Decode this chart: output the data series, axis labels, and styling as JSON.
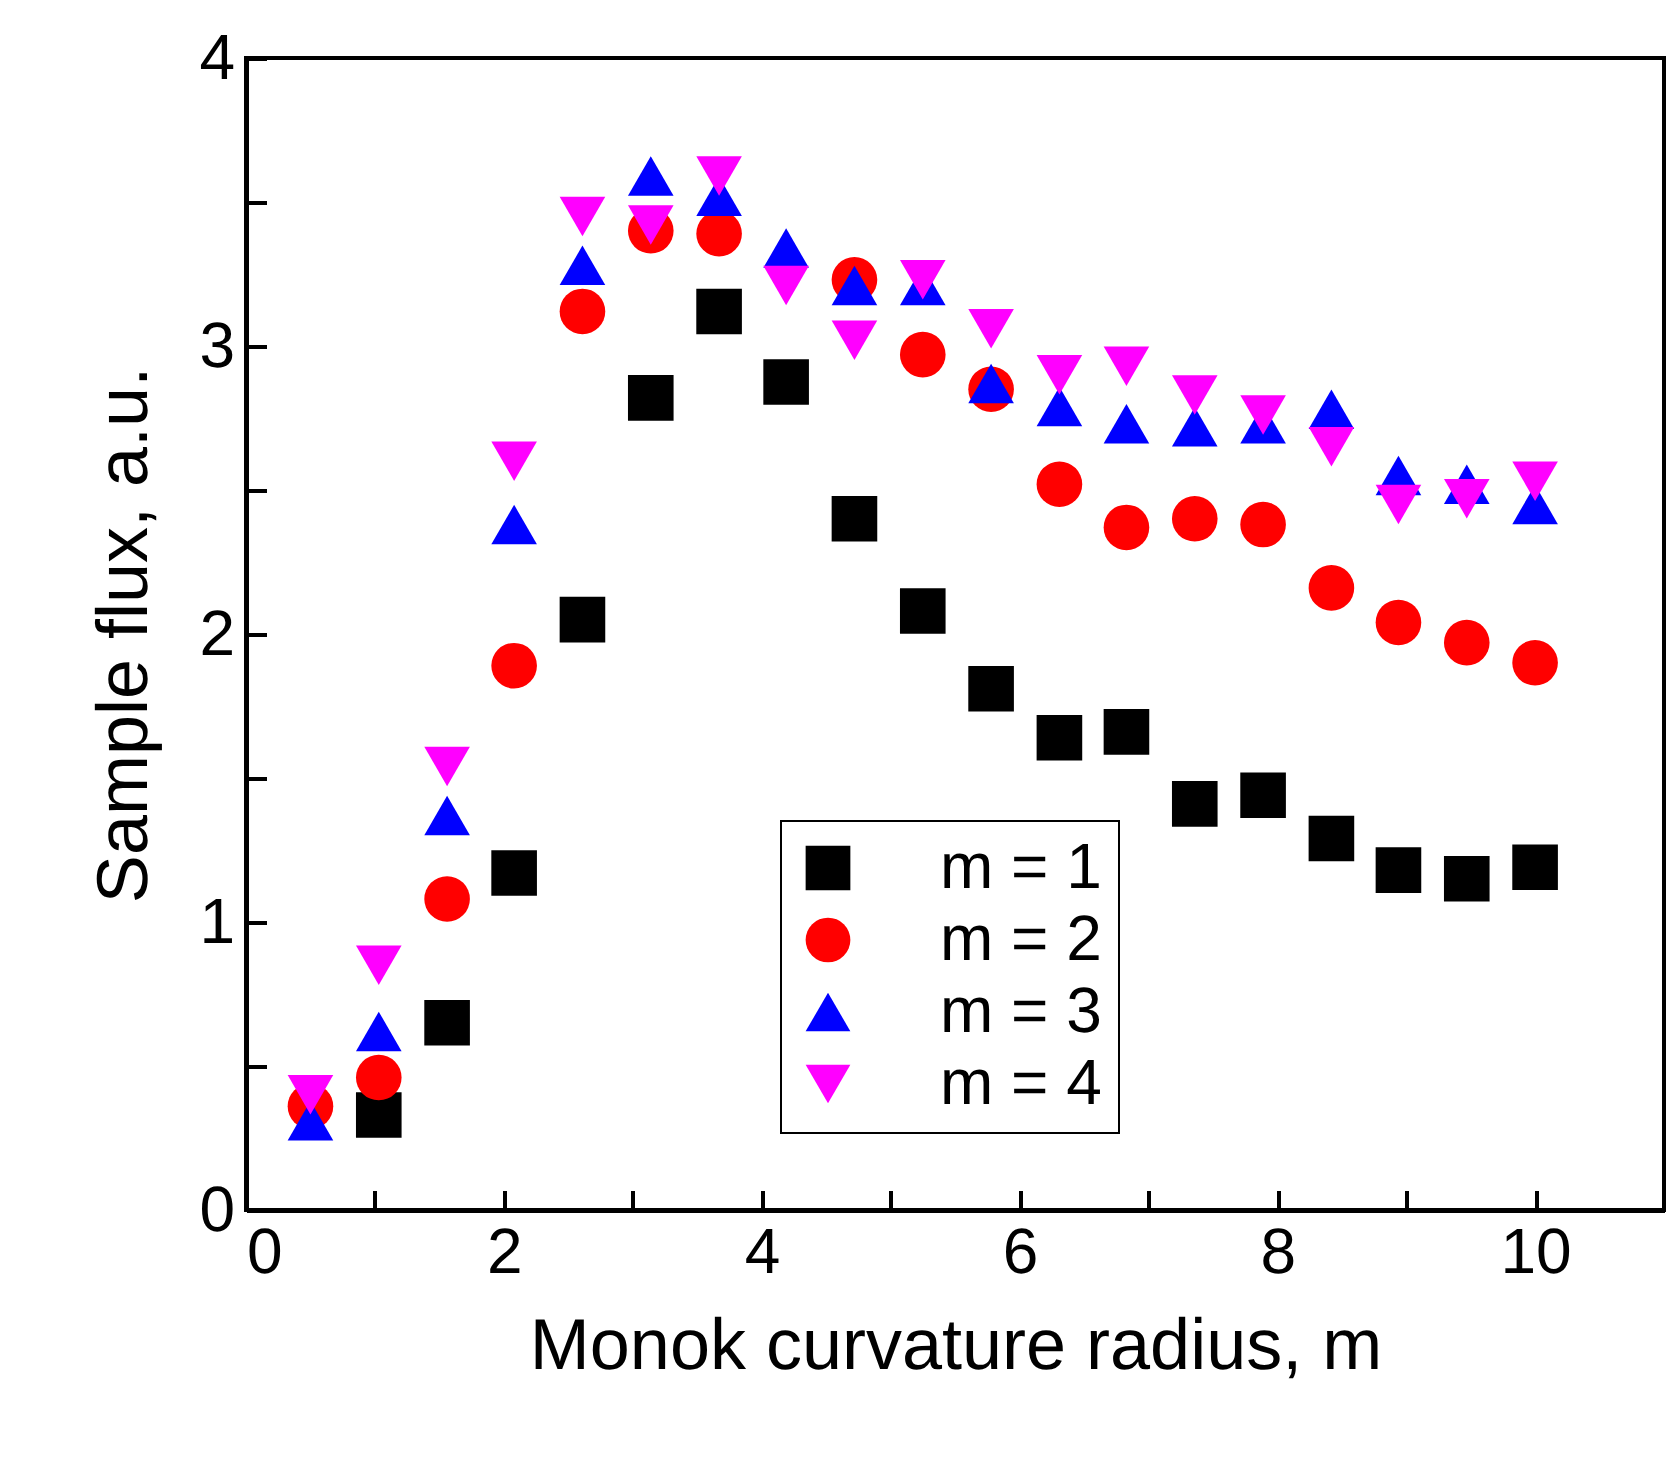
{
  "chart_data": {
    "type": "scatter",
    "xlabel": "Monok curvature radius, m",
    "ylabel": "Sample flux, a.u.",
    "x": [
      0.5,
      1.03,
      1.56,
      2.08,
      2.61,
      3.14,
      3.67,
      4.19,
      4.72,
      5.25,
      5.78,
      6.31,
      6.83,
      7.36,
      7.89,
      8.42,
      8.94,
      9.47,
      10
    ],
    "series": [
      {
        "name": "m = 1",
        "color": "#000000",
        "marker": "square",
        "values": [
          null,
          0.33,
          0.65,
          1.17,
          2.05,
          2.82,
          3.12,
          2.875,
          2.4,
          2.08,
          1.81,
          1.64,
          1.66,
          1.41,
          1.44,
          1.29,
          1.18,
          1.15,
          1.19
        ]
      },
      {
        "name": "m = 2",
        "color": "#ff0000",
        "marker": "circle",
        "values": [
          0.36,
          0.46,
          1.08,
          1.89,
          3.12,
          3.4,
          3.39,
          null,
          3.23,
          2.97,
          2.85,
          2.52,
          2.37,
          2.4,
          2.38,
          2.16,
          2.04,
          1.97,
          1.9
        ]
      },
      {
        "name": "m = 3",
        "color": "#0000ff",
        "marker": "triangle",
        "values": [
          0.31,
          0.62,
          1.37,
          2.38,
          3.28,
          3.59,
          3.52,
          3.34,
          3.21,
          3.21,
          2.87,
          2.79,
          2.73,
          2.72,
          2.73,
          2.78,
          2.55,
          2.52,
          2.45
        ]
      },
      {
        "name": "m = 4",
        "color": "#ff00ff",
        "marker": "triangle-down",
        "values": [
          0.4,
          0.85,
          1.54,
          2.6,
          3.45,
          3.42,
          3.59,
          3.21,
          3.02,
          3.23,
          3.06,
          2.9,
          2.93,
          2.83,
          2.76,
          2.65,
          2.45,
          2.47,
          2.53
        ]
      }
    ],
    "xlim": [
      0,
      11
    ],
    "xticks": [
      0,
      {
        "value": 1,
        "label": null
      },
      2,
      {
        "value": 3,
        "label": null
      },
      4,
      {
        "value": 5,
        "label": null
      },
      6,
      {
        "value": 7,
        "label": null
      },
      8,
      {
        "value": 9,
        "label": null
      },
      10
    ],
    "ylim": [
      0,
      4
    ],
    "yticks": [
      0,
      {
        "value": 0.5,
        "label": null
      },
      1,
      {
        "value": 1.5,
        "label": null
      },
      2,
      {
        "value": 2.5,
        "label": null
      },
      3,
      {
        "value": 3.5,
        "label": null
      },
      4
    ],
    "grid": false,
    "legend": "bottom"
  }
}
